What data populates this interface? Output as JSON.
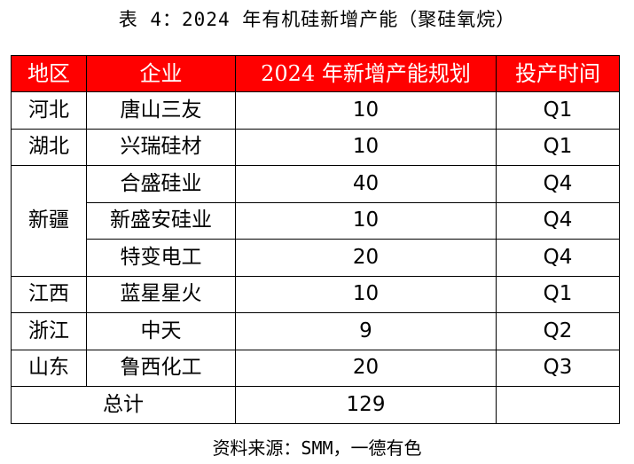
{
  "title": "表 4：2024 年有机硅新增产能（聚硅氧烷）",
  "headers": [
    "地区",
    "企业",
    "2024 年新增产能规划",
    "投产时间"
  ],
  "rows": [
    {
      "region": "河北",
      "company": "唐山三友",
      "capacity": "10",
      "time": "Q1"
    },
    {
      "region": "湖北",
      "company": "兴瑞硅材",
      "capacity": "10",
      "time": "Q1"
    },
    {
      "region": "新疆",
      "company": "合盛硅业",
      "capacity": "40",
      "time": "Q4"
    },
    {
      "region": "",
      "company": "新盛安硅业",
      "capacity": "10",
      "time": "Q4"
    },
    {
      "region": "",
      "company": "特变电工",
      "capacity": "20",
      "time": "Q4"
    },
    {
      "region": "江西",
      "company": "蓝星星火",
      "capacity": "10",
      "time": "Q1"
    },
    {
      "region": "浙江",
      "company": "中天",
      "capacity": "9",
      "time": "Q2"
    },
    {
      "region": "山东",
      "company": "鲁西化工",
      "capacity": "20",
      "time": "Q3"
    }
  ],
  "total": {
    "label": "总计",
    "value": "129",
    "time": ""
  },
  "source": "资料来源：SMM，一德有色",
  "colors": {
    "header_bg": "#ff0000",
    "header_text": "#ffffff",
    "border": "#000000"
  }
}
